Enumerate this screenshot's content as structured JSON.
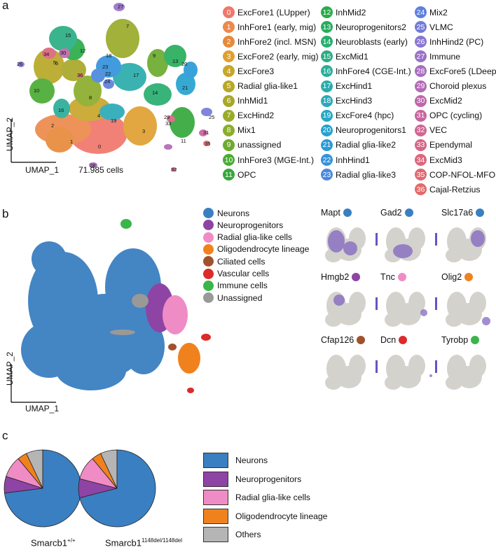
{
  "panel_a": {
    "letter": "a",
    "axis_x": "UMAP_1",
    "axis_y": "UMAP_2",
    "cell_count": "71.985 cells",
    "clusters": [
      {
        "id": "0",
        "label": "ExcFore1 (LUpper)",
        "color": "#f0776b"
      },
      {
        "id": "1",
        "label": "InhFore1 (early, mig)",
        "color": "#ec8a4c"
      },
      {
        "id": "2",
        "label": "InhFore2 (incl. MSN)",
        "color": "#e8893a"
      },
      {
        "id": "3",
        "label": "ExcFore2 (early, mig)",
        "color": "#e0a030"
      },
      {
        "id": "4",
        "label": "ExcFore3",
        "color": "#c8a62a"
      },
      {
        "id": "5",
        "label": "Radial glia-like1",
        "color": "#b8a828"
      },
      {
        "id": "6",
        "label": "InhMid1",
        "color": "#a8a828"
      },
      {
        "id": "7",
        "label": "ExcHind2",
        "color": "#9aab2a"
      },
      {
        "id": "8",
        "label": "Mix1",
        "color": "#8aad2c"
      },
      {
        "id": "9",
        "label": "unassigned",
        "color": "#6cab2e"
      },
      {
        "id": "10",
        "label": "InhFore3 (MGE-Int.)",
        "color": "#4aab34"
      },
      {
        "id": "11",
        "label": "OPC",
        "color": "#35a83c"
      },
      {
        "id": "12",
        "label": "InhMid2",
        "color": "#2aac48"
      },
      {
        "id": "13",
        "label": "Neuroprogenitors2",
        "color": "#28ad5c"
      },
      {
        "id": "14",
        "label": "Neuroblasts (early)",
        "color": "#28ae70"
      },
      {
        "id": "15",
        "label": "ExcMid1",
        "color": "#2aae84"
      },
      {
        "id": "16",
        "label": "InhFore4 (CGE-Int.)",
        "color": "#2aae98"
      },
      {
        "id": "17",
        "label": "ExcHind1",
        "color": "#2aacab"
      },
      {
        "id": "18",
        "label": "ExcHind3",
        "color": "#2aaab8"
      },
      {
        "id": "19",
        "label": "ExcFore4 (hpc)",
        "color": "#28a8c4"
      },
      {
        "id": "20",
        "label": "Neuroprogenitors1",
        "color": "#26a2cf"
      },
      {
        "id": "21",
        "label": "Radial glia-like2",
        "color": "#2a9bd8"
      },
      {
        "id": "22",
        "label": "InhHind1",
        "color": "#3492dc"
      },
      {
        "id": "23",
        "label": "Radial glia-like3",
        "color": "#4a88de"
      },
      {
        "id": "24",
        "label": "Mix2",
        "color": "#5e80dc"
      },
      {
        "id": "25",
        "label": "VLMC",
        "color": "#747bd8"
      },
      {
        "id": "26",
        "label": "InhHind2 (PC)",
        "color": "#8a76d2"
      },
      {
        "id": "27",
        "label": "Immune",
        "color": "#9a72c8"
      },
      {
        "id": "28",
        "label": "ExcFore5 (LDeep)",
        "color": "#a86ec0"
      },
      {
        "id": "29",
        "label": "Choroid plexus",
        "color": "#b46ab6"
      },
      {
        "id": "30",
        "label": "ExcMid2",
        "color": "#be68aa"
      },
      {
        "id": "31",
        "label": "OPC (cycling)",
        "color": "#c8669e"
      },
      {
        "id": "32",
        "label": "VEC",
        "color": "#d06692"
      },
      {
        "id": "33",
        "label": "Ependymal",
        "color": "#d66686"
      },
      {
        "id": "34",
        "label": "ExcMid3",
        "color": "#dc667c"
      },
      {
        "id": "35",
        "label": "COP-NFOL-MFOL",
        "color": "#e06872"
      },
      {
        "id": "36",
        "label": "Cajal-Retzius",
        "color": "#e46a6a"
      }
    ],
    "umap_labels": [
      "0",
      "1",
      "2",
      "3",
      "4",
      "5",
      "6",
      "7",
      "8",
      "9",
      "10",
      "11",
      "12",
      "13",
      "14",
      "15",
      "16",
      "17",
      "18",
      "19",
      "20",
      "21",
      "22",
      "23",
      "24",
      "25",
      "26",
      "27",
      "28",
      "29",
      "30",
      "31",
      "32",
      "33",
      "34",
      "35",
      "36"
    ]
  },
  "panel_b": {
    "letter": "b",
    "axis_x": "UMAP_1",
    "axis_y": "UMAP_2",
    "legend": [
      {
        "label": "Neurons",
        "color": "#3a7fc1"
      },
      {
        "label": "Neuroprogenitors",
        "color": "#8e44a4"
      },
      {
        "label": "Radial glia-like cells",
        "color": "#ef8cc5"
      },
      {
        "label": "Oligodendrocyte lineage",
        "color": "#f0821e"
      },
      {
        "label": "Ciliated cells",
        "color": "#a0522d"
      },
      {
        "label": "Vascular cells",
        "color": "#dd2a2a"
      },
      {
        "label": "Immune cells",
        "color": "#3ab54a"
      },
      {
        "label": "Unassigned",
        "color": "#999999"
      }
    ],
    "genes": [
      {
        "name": "Mapt",
        "color": "#3a7fc1"
      },
      {
        "name": "Gad2",
        "color": "#3a7fc1"
      },
      {
        "name": "Slc17a6",
        "color": "#3a7fc1"
      },
      {
        "name": "Hmgb2",
        "color": "#8e44a4"
      },
      {
        "name": "Tnc",
        "color": "#ef8cc5"
      },
      {
        "name": "Olig2",
        "color": "#f0821e"
      },
      {
        "name": "Cfap126",
        "color": "#a0522d"
      },
      {
        "name": "Dcn",
        "color": "#dd2a2a"
      },
      {
        "name": "Tyrobp",
        "color": "#3ab54a"
      }
    ]
  },
  "panel_c": {
    "letter": "c",
    "pie1_label_main": "Smarcb1",
    "pie1_label_sup": "+/+",
    "pie2_label_main": "Smarcb1",
    "pie2_label_sup": "1148del/1148del",
    "legend": [
      {
        "label": "Neurons",
        "color": "#3a7fc1"
      },
      {
        "label": "Neuroprogenitors",
        "color": "#8e44a4"
      },
      {
        "label": "Radial glia-like cells",
        "color": "#ef8cc5"
      },
      {
        "label": "Oligodendrocyte lineage",
        "color": "#f0821e"
      },
      {
        "label": "Others",
        "color": "#b5b5b5"
      }
    ]
  },
  "chart_data": [
    {
      "type": "pie",
      "title": "Smarcb1 +/+",
      "categories": [
        "Neurons",
        "Neuroprogenitors",
        "Radial glia-like cells",
        "Oligodendrocyte lineage",
        "Others"
      ],
      "values": [
        73,
        7,
        9,
        4,
        7
      ]
    },
    {
      "type": "pie",
      "title": "Smarcb1 1148del/1148del",
      "categories": [
        "Neurons",
        "Neuroprogenitors",
        "Radial glia-like cells",
        "Oligodendrocyte lineage",
        "Others"
      ],
      "values": [
        71,
        8,
        10,
        4,
        7
      ]
    }
  ]
}
